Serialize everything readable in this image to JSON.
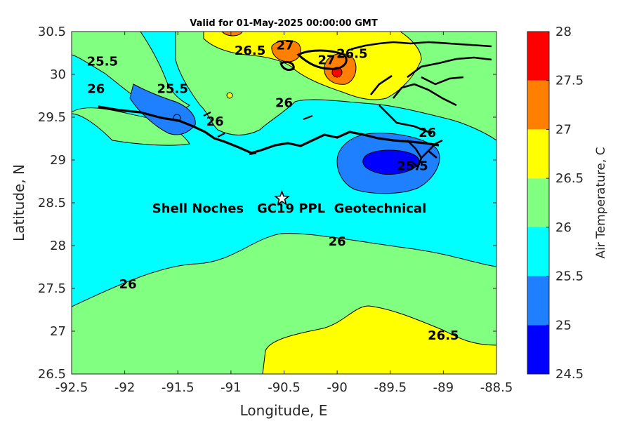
{
  "chart_data": {
    "type": "contour",
    "title": "Valid for 01-May-2025 00:00:00 GMT",
    "xlabel": "Longitude, E",
    "ylabel": "Latitude, N",
    "xlim": [
      -92.5,
      -88.5
    ],
    "ylim": [
      26.5,
      30.5
    ],
    "xticks": [
      "-92.5",
      "-92",
      "-91.5",
      "-91",
      "-90.5",
      "-90",
      "-89.5",
      "-89",
      "-88.5"
    ],
    "yticks": [
      "26.5",
      "27",
      "27.5",
      "28",
      "28.5",
      "29",
      "29.5",
      "30",
      "30.5"
    ],
    "colorbar": {
      "label": "Air Temperature, C",
      "levels": [
        24.5,
        25,
        25.5,
        26,
        26.5,
        27,
        27.5,
        28
      ],
      "tick_labels": [
        "24.5",
        "25",
        "25.5",
        "26",
        "26.5",
        "27",
        "27.5",
        "28"
      ],
      "colors": [
        "#0000ff",
        "#1e7fff",
        "#00ffff",
        "#80ff80",
        "#ffff00",
        "#ff8000",
        "#ff0000",
        "#800000"
      ]
    },
    "contour_labels": [
      {
        "text": "26",
        "lon": -90.0,
        "lat": 28.05
      },
      {
        "text": "26",
        "lon": -91.97,
        "lat": 27.55
      },
      {
        "text": "26.5",
        "lon": -89.0,
        "lat": 26.95
      },
      {
        "text": "26.5",
        "lon": -90.82,
        "lat": 30.28
      },
      {
        "text": "27",
        "lon": -90.49,
        "lat": 30.34
      },
      {
        "text": "27",
        "lon": -90.1,
        "lat": 30.17
      },
      {
        "text": "26.5",
        "lon": -89.86,
        "lat": 30.24
      },
      {
        "text": "25.5",
        "lon": -92.21,
        "lat": 30.15
      },
      {
        "text": "26",
        "lon": -92.27,
        "lat": 29.83
      },
      {
        "text": "25.5",
        "lon": -91.55,
        "lat": 29.83
      },
      {
        "text": "26",
        "lon": -91.15,
        "lat": 29.45
      },
      {
        "text": "26",
        "lon": -90.5,
        "lat": 29.67
      },
      {
        "text": "26",
        "lon": -89.15,
        "lat": 29.32
      },
      {
        "text": "25.5",
        "lon": -89.29,
        "lat": 28.93
      }
    ],
    "station": {
      "name": "Shell Noches   GC19 PPL  Geotechnical",
      "lon": -90.52,
      "lat": 28.55
    }
  }
}
